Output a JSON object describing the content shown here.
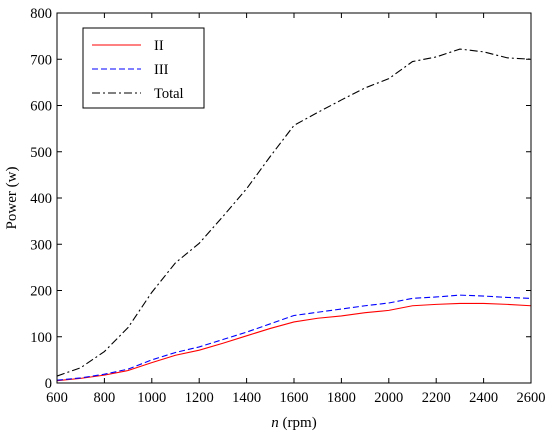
{
  "chart_data": {
    "type": "line",
    "xlabel_var": "n",
    "xlabel_unit": " (rpm)",
    "ylabel": "Power (w)",
    "xlim": [
      600,
      2600
    ],
    "ylim": [
      0,
      800
    ],
    "x_ticks": [
      600,
      800,
      1000,
      1200,
      1400,
      1600,
      1800,
      2000,
      2200,
      2400,
      2600
    ],
    "y_ticks": [
      0,
      100,
      200,
      300,
      400,
      500,
      600,
      700,
      800
    ],
    "grid": false,
    "legend_position": "top-left",
    "x": [
      600,
      700,
      800,
      900,
      1000,
      1100,
      1200,
      1300,
      1400,
      1500,
      1600,
      1700,
      1800,
      1900,
      2000,
      2100,
      2200,
      2300,
      2400,
      2500,
      2600
    ],
    "series": [
      {
        "name": "II",
        "color": "#ff0000",
        "style": "solid",
        "values": [
          5,
          10,
          17,
          27,
          44,
          60,
          71,
          86,
          102,
          118,
          132,
          140,
          145,
          152,
          157,
          167,
          170,
          172,
          172,
          170,
          167
        ]
      },
      {
        "name": "III",
        "color": "#0000ff",
        "style": "dashed",
        "values": [
          6,
          11,
          19,
          30,
          50,
          66,
          78,
          94,
          110,
          128,
          146,
          153,
          160,
          167,
          173,
          183,
          186,
          190,
          188,
          185,
          183
        ]
      },
      {
        "name": "Total",
        "color": "#000000",
        "style": "dashdot",
        "values": [
          15,
          33,
          68,
          120,
          196,
          260,
          302,
          360,
          420,
          490,
          557,
          585,
          612,
          638,
          658,
          695,
          705,
          722,
          716,
          703,
          700
        ]
      }
    ]
  }
}
